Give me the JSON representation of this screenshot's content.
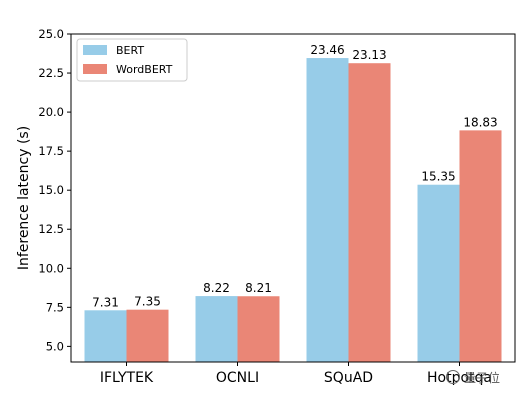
{
  "chart_data": {
    "type": "bar",
    "categories": [
      "IFLYTEK",
      "OCNLI",
      "SQuAD",
      "Hotpotqa"
    ],
    "series": [
      {
        "name": "BERT",
        "values": [
          7.31,
          8.22,
          23.46,
          15.35
        ],
        "color": "#97CCE8"
      },
      {
        "name": "WordBERT",
        "values": [
          7.35,
          8.21,
          23.13,
          18.83
        ],
        "color": "#EA8676"
      }
    ],
    "data_labels": [
      [
        "7.31",
        "8.22",
        "23.46",
        "15.35"
      ],
      [
        "7.35",
        "8.21",
        "23.13",
        "18.83"
      ]
    ],
    "title": "",
    "xlabel": "",
    "ylabel": "Inference latency (s)",
    "ylim": [
      4.0,
      25.0
    ],
    "yticks": [
      5.0,
      7.5,
      10.0,
      12.5,
      15.0,
      17.5,
      20.0,
      22.5,
      25.0
    ],
    "ytick_labels": [
      "5.0",
      "7.5",
      "10.0",
      "12.5",
      "15.0",
      "17.5",
      "20.0",
      "22.5",
      "25.0"
    ],
    "grid": false,
    "legend_position": "top-left"
  },
  "watermark": {
    "text": "量子位",
    "icon": "qbitai-logo-icon"
  }
}
